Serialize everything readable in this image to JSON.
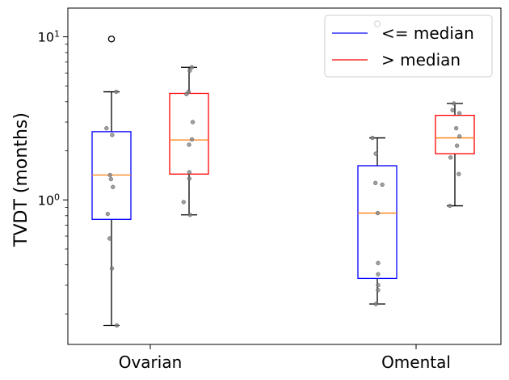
{
  "chart_data": {
    "type": "boxplot",
    "title": "",
    "xlabel": "",
    "ylabel": "TVDT (months)",
    "yscale": "log",
    "ylim": [
      0.13,
      15
    ],
    "yticks": [
      {
        "value": 1,
        "label": "10^0"
      },
      {
        "value": 10,
        "label": "10^1"
      }
    ],
    "categories": [
      "Ovarian",
      "Omental"
    ],
    "legend": {
      "placement": "upper-right",
      "entries": [
        {
          "label": "<= median",
          "color": "#0000ff"
        },
        {
          "label": "> median",
          "color": "#ff0000"
        }
      ]
    },
    "median_line_color": "#ff7f0e",
    "whisker_color": "#000000",
    "point_color": "#808080",
    "series": [
      {
        "group": "<= median",
        "category": "Ovarian",
        "color": "#0000ff",
        "q1": 0.76,
        "median": 1.42,
        "q3": 2.62,
        "whisker_low": 0.17,
        "whisker_high": 4.6,
        "outliers": [
          9.7
        ],
        "points": [
          4.6,
          2.75,
          2.5,
          1.42,
          1.34,
          1.2,
          0.82,
          0.58,
          0.38,
          0.17
        ]
      },
      {
        "group": "> median",
        "category": "Ovarian",
        "color": "#ff0000",
        "q1": 1.44,
        "median": 2.33,
        "q3": 4.5,
        "whisker_low": 0.81,
        "whisker_high": 6.5,
        "outliers": [],
        "points": [
          6.5,
          6.2,
          4.6,
          4.45,
          3.0,
          2.35,
          2.18,
          1.48,
          1.35,
          0.97,
          0.81
        ]
      },
      {
        "group": "<= median",
        "category": "Omental",
        "color": "#0000ff",
        "q1": 0.33,
        "median": 0.83,
        "q3": 1.62,
        "whisker_low": 0.23,
        "whisker_high": 2.4,
        "outliers": [
          12
        ],
        "points": [
          2.4,
          1.92,
          1.27,
          1.24,
          0.83,
          0.41,
          0.35,
          0.3,
          0.28,
          0.23
        ]
      },
      {
        "group": "> median",
        "category": "Omental",
        "color": "#ff0000",
        "q1": 1.92,
        "median": 2.4,
        "q3": 3.3,
        "whisker_low": 0.92,
        "whisker_high": 3.9,
        "outliers": [],
        "points": [
          3.9,
          3.55,
          3.4,
          2.75,
          2.45,
          2.15,
          1.82,
          1.44,
          0.92
        ]
      }
    ]
  }
}
